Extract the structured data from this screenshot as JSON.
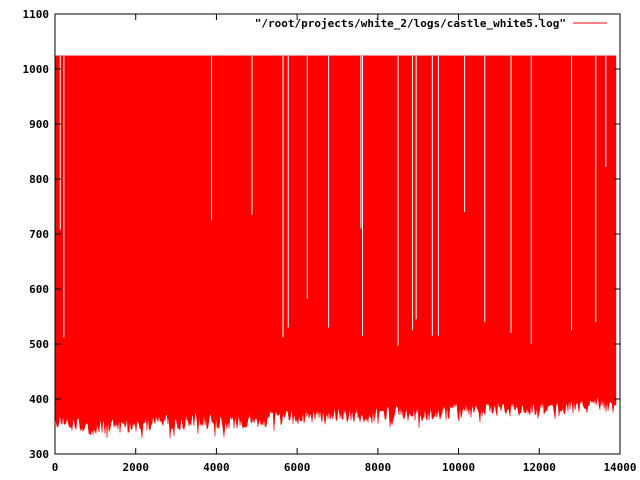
{
  "chart_data": {
    "type": "line",
    "title": "",
    "xlabel": "",
    "ylabel": "",
    "xlim": [
      0,
      14000
    ],
    "ylim": [
      300,
      1100
    ],
    "x_ticks": [
      0,
      2000,
      4000,
      6000,
      8000,
      10000,
      12000,
      14000
    ],
    "y_ticks": [
      300,
      400,
      500,
      600,
      700,
      800,
      900,
      1000,
      1100
    ],
    "x_tick_labels": [
      "0",
      "2000",
      "4000",
      "6000",
      "8000",
      "10000",
      "12000",
      "14000"
    ],
    "y_tick_labels": [
      "300",
      "400",
      "500",
      "600",
      "700",
      "800",
      "900",
      "1000",
      "1100"
    ],
    "grid": false,
    "legend_placement": "top-right",
    "series": [
      {
        "name": "\"/root/projects/white_2/logs/castle_white5.log\"",
        "color": "#ff0000",
        "x_range": [
          0,
          13900
        ],
        "upper_value": 1024,
        "lower_envelope": [
          [
            0,
            362
          ],
          [
            500,
            352
          ],
          [
            1000,
            350
          ],
          [
            1500,
            355
          ],
          [
            2000,
            355
          ],
          [
            2500,
            358
          ],
          [
            3000,
            358
          ],
          [
            3500,
            362
          ],
          [
            4000,
            360
          ],
          [
            4500,
            362
          ],
          [
            5000,
            365
          ],
          [
            5500,
            366
          ],
          [
            6000,
            368
          ],
          [
            6500,
            368
          ],
          [
            7000,
            372
          ],
          [
            7500,
            372
          ],
          [
            8000,
            372
          ],
          [
            8500,
            375
          ],
          [
            9000,
            375
          ],
          [
            9500,
            378
          ],
          [
            10000,
            380
          ],
          [
            10500,
            382
          ],
          [
            11000,
            385
          ],
          [
            11500,
            382
          ],
          [
            12000,
            385
          ],
          [
            12500,
            385
          ],
          [
            13000,
            392
          ],
          [
            13500,
            392
          ],
          [
            13900,
            385
          ]
        ],
        "dips": [
          [
            130,
            708
          ],
          [
            220,
            512
          ],
          [
            3880,
            725
          ],
          [
            4880,
            735
          ],
          [
            5650,
            512
          ],
          [
            5780,
            530
          ],
          [
            6250,
            582
          ],
          [
            6780,
            530
          ],
          [
            7580,
            710
          ],
          [
            7620,
            515
          ],
          [
            8500,
            497
          ],
          [
            8860,
            525
          ],
          [
            8950,
            545
          ],
          [
            9350,
            515
          ],
          [
            9500,
            515
          ],
          [
            10150,
            740
          ],
          [
            10650,
            540
          ],
          [
            11300,
            520
          ],
          [
            11800,
            500
          ],
          [
            12800,
            525
          ],
          [
            13400,
            540
          ],
          [
            13650,
            822
          ]
        ]
      }
    ]
  }
}
